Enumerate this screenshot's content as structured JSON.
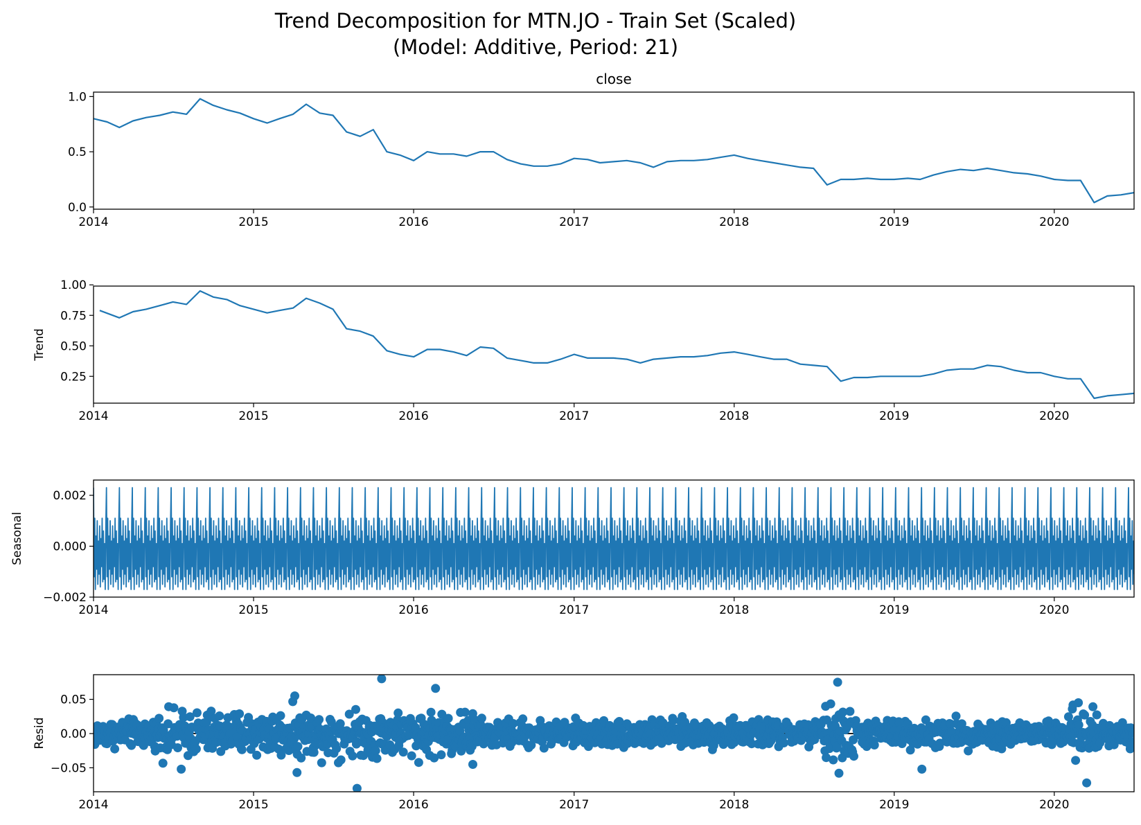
{
  "figure": {
    "title_line1": "Trend Decomposition for MTN.JO - Train Set (Scaled)",
    "title_line2": "(Model: Additive, Period: 21)"
  },
  "colors": {
    "series": "#1f77b4",
    "axis": "#000000",
    "background": "#ffffff"
  },
  "chart_data": [
    {
      "type": "line",
      "title": "close",
      "ylabel": "",
      "xlim": [
        "2014-01-01",
        "2020-07-01"
      ],
      "ylim": [
        -0.02,
        1.04
      ],
      "x_ticks": [
        "2014",
        "2015",
        "2016",
        "2017",
        "2018",
        "2019",
        "2020"
      ],
      "y_ticks": [
        "0.0",
        "0.5",
        "1.0"
      ],
      "y_tick_values": [
        0.0,
        0.5,
        1.0
      ],
      "grid": false,
      "series": [
        {
          "x": [
            "2014-01",
            "2014-02",
            "2014-03",
            "2014-04",
            "2014-05",
            "2014-06",
            "2014-07",
            "2014-08",
            "2014-09",
            "2014-10",
            "2014-11",
            "2014-12",
            "2015-01",
            "2015-02",
            "2015-03",
            "2015-04",
            "2015-05",
            "2015-06",
            "2015-07",
            "2015-08",
            "2015-09",
            "2015-10",
            "2015-11",
            "2015-12",
            "2016-01",
            "2016-02",
            "2016-03",
            "2016-04",
            "2016-05",
            "2016-06",
            "2016-07",
            "2016-08",
            "2016-09",
            "2016-10",
            "2016-11",
            "2016-12",
            "2017-01",
            "2017-02",
            "2017-03",
            "2017-04",
            "2017-05",
            "2017-06",
            "2017-07",
            "2017-08",
            "2017-09",
            "2017-10",
            "2017-11",
            "2017-12",
            "2018-01",
            "2018-02",
            "2018-03",
            "2018-04",
            "2018-05",
            "2018-06",
            "2018-07",
            "2018-08",
            "2018-09",
            "2018-10",
            "2018-11",
            "2018-12",
            "2019-01",
            "2019-02",
            "2019-03",
            "2019-04",
            "2019-05",
            "2019-06",
            "2019-07",
            "2019-08",
            "2019-09",
            "2019-10",
            "2019-11",
            "2019-12",
            "2020-01",
            "2020-02",
            "2020-03",
            "2020-04",
            "2020-05",
            "2020-06",
            "2020-07"
          ],
          "y": [
            0.8,
            0.77,
            0.72,
            0.78,
            0.81,
            0.83,
            0.86,
            0.84,
            0.98,
            0.92,
            0.88,
            0.85,
            0.8,
            0.76,
            0.8,
            0.84,
            0.93,
            0.85,
            0.83,
            0.68,
            0.64,
            0.7,
            0.5,
            0.47,
            0.42,
            0.5,
            0.48,
            0.48,
            0.46,
            0.5,
            0.5,
            0.43,
            0.39,
            0.37,
            0.37,
            0.39,
            0.44,
            0.43,
            0.4,
            0.41,
            0.42,
            0.4,
            0.36,
            0.41,
            0.42,
            0.42,
            0.43,
            0.45,
            0.47,
            0.44,
            0.42,
            0.4,
            0.38,
            0.36,
            0.35,
            0.2,
            0.25,
            0.25,
            0.26,
            0.25,
            0.25,
            0.26,
            0.25,
            0.29,
            0.32,
            0.34,
            0.33,
            0.35,
            0.33,
            0.31,
            0.3,
            0.28,
            0.25,
            0.24,
            0.24,
            0.04,
            0.1,
            0.11,
            0.13
          ]
        }
      ]
    },
    {
      "type": "line",
      "title": "",
      "ylabel": "Trend",
      "xlim": [
        "2014-01-01",
        "2020-07-01"
      ],
      "ylim": [
        0.03,
        0.99
      ],
      "x_ticks": [
        "2014",
        "2015",
        "2016",
        "2017",
        "2018",
        "2019",
        "2020"
      ],
      "y_ticks": [
        "0.25",
        "0.50",
        "0.75",
        "1.00"
      ],
      "y_tick_values": [
        0.25,
        0.5,
        0.75,
        1.0
      ],
      "grid": false,
      "series": [
        {
          "x": [
            "2014-01-15",
            "2014-03",
            "2014-04",
            "2014-05",
            "2014-06",
            "2014-07",
            "2014-08",
            "2014-09",
            "2014-10",
            "2014-11",
            "2014-12",
            "2015-01",
            "2015-02",
            "2015-03",
            "2015-04",
            "2015-05",
            "2015-06",
            "2015-07",
            "2015-08",
            "2015-09",
            "2015-10",
            "2015-11",
            "2015-12",
            "2016-01",
            "2016-02",
            "2016-03",
            "2016-04",
            "2016-05",
            "2016-06",
            "2016-07",
            "2016-08",
            "2016-09",
            "2016-10",
            "2016-11",
            "2016-12",
            "2017-01",
            "2017-02",
            "2017-03",
            "2017-04",
            "2017-05",
            "2017-06",
            "2017-07",
            "2017-08",
            "2017-09",
            "2017-10",
            "2017-11",
            "2017-12",
            "2018-01",
            "2018-02",
            "2018-03",
            "2018-04",
            "2018-05",
            "2018-06",
            "2018-07",
            "2018-08",
            "2018-09",
            "2018-10",
            "2018-11",
            "2018-12",
            "2019-01",
            "2019-02",
            "2019-03",
            "2019-04",
            "2019-05",
            "2019-06",
            "2019-07",
            "2019-08",
            "2019-09",
            "2019-10",
            "2019-11",
            "2019-12",
            "2020-01",
            "2020-02",
            "2020-03",
            "2020-04",
            "2020-05",
            "2020-06",
            "2020-07"
          ],
          "y": [
            0.79,
            0.73,
            0.78,
            0.8,
            0.83,
            0.86,
            0.84,
            0.95,
            0.9,
            0.88,
            0.83,
            0.8,
            0.77,
            0.79,
            0.81,
            0.89,
            0.85,
            0.8,
            0.64,
            0.62,
            0.58,
            0.46,
            0.43,
            0.41,
            0.47,
            0.47,
            0.45,
            0.42,
            0.49,
            0.48,
            0.4,
            0.38,
            0.36,
            0.36,
            0.39,
            0.43,
            0.4,
            0.4,
            0.4,
            0.39,
            0.36,
            0.39,
            0.4,
            0.41,
            0.41,
            0.42,
            0.44,
            0.45,
            0.43,
            0.41,
            0.39,
            0.39,
            0.35,
            0.34,
            0.33,
            0.21,
            0.24,
            0.24,
            0.25,
            0.25,
            0.25,
            0.25,
            0.27,
            0.3,
            0.31,
            0.31,
            0.34,
            0.33,
            0.3,
            0.28,
            0.28,
            0.25,
            0.23,
            0.23,
            0.07,
            0.09,
            0.1,
            0.11
          ]
        }
      ]
    },
    {
      "type": "line",
      "title": "",
      "ylabel": "Seasonal",
      "xlim": [
        "2014-01-01",
        "2020-07-01"
      ],
      "ylim": [
        -0.002,
        0.0026
      ],
      "x_ticks": [
        "2014",
        "2015",
        "2016",
        "2017",
        "2018",
        "2019",
        "2020"
      ],
      "y_ticks": [
        "−0.002",
        "0.000",
        "0.002"
      ],
      "y_tick_values": [
        -0.002,
        0.0,
        0.002
      ],
      "grid": false,
      "period": 21,
      "pattern": [
        0.0023,
        -0.0012,
        0.0011,
        -0.0017,
        0.0004,
        -0.0009,
        0.001,
        -0.0015,
        0.0002,
        -0.0011,
        0.0008,
        -0.0016,
        0.0003,
        -0.0008,
        0.0011,
        -0.0014,
        0.0006,
        -0.0013,
        0.0001,
        -0.0017,
        0.0009
      ]
    },
    {
      "type": "scatter",
      "title": "",
      "ylabel": "Resid",
      "xlim": [
        "2014-01-01",
        "2020-07-01"
      ],
      "ylim": [
        -0.085,
        0.086
      ],
      "x_ticks": [
        "2014",
        "2015",
        "2016",
        "2017",
        "2018",
        "2019",
        "2020"
      ],
      "y_ticks": [
        "−0.05",
        "0.00",
        "0.05"
      ],
      "y_tick_values": [
        -0.05,
        0.0,
        0.05
      ],
      "grid": false,
      "baseline": 0.0,
      "notable_points": [
        {
          "x": "2015-10-20",
          "y": 0.08
        },
        {
          "x": "2015-08-25",
          "y": -0.08
        },
        {
          "x": "2016-02-20",
          "y": 0.066
        },
        {
          "x": "2018-08-25",
          "y": 0.075
        },
        {
          "x": "2018-08-28",
          "y": -0.058
        },
        {
          "x": "2020-03-15",
          "y": -0.072
        },
        {
          "x": "2020-02-25",
          "y": 0.045
        },
        {
          "x": "2015-04-05",
          "y": 0.055
        },
        {
          "x": "2015-04-10",
          "y": -0.057
        },
        {
          "x": "2014-07-20",
          "y": -0.052
        },
        {
          "x": "2019-03-05",
          "y": -0.052
        },
        {
          "x": "2016-05-15",
          "y": -0.045
        }
      ]
    }
  ]
}
